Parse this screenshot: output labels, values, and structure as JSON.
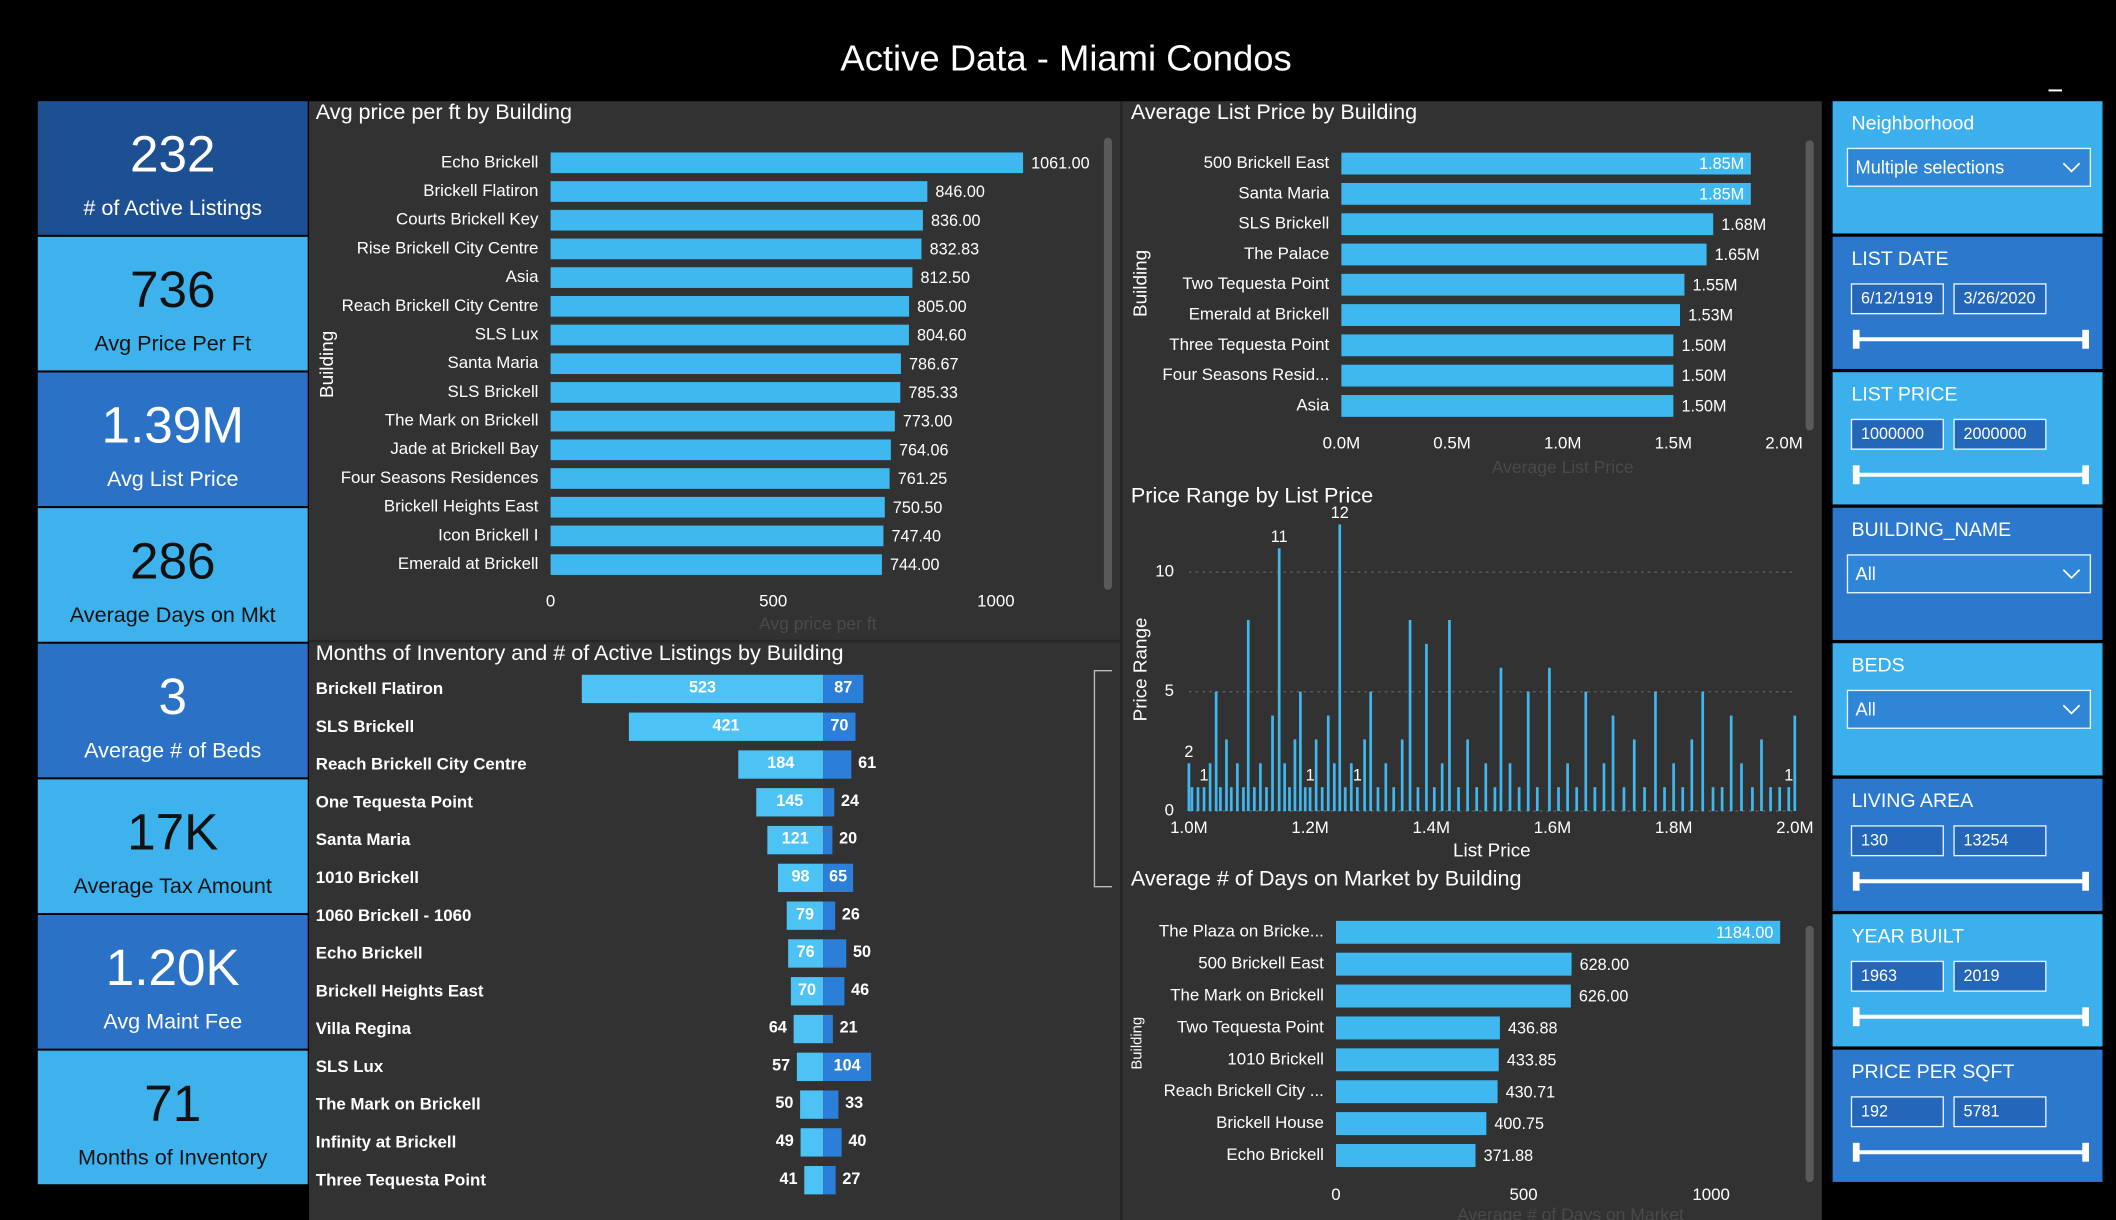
{
  "title": "Active Data - Miami Condos",
  "kpis": [
    {
      "value": "232",
      "label": "# of Active Listings"
    },
    {
      "value": "736",
      "label": "Avg Price Per Ft"
    },
    {
      "value": "1.39M",
      "label": "Avg List Price"
    },
    {
      "value": "286",
      "label": "Average Days on Mkt"
    },
    {
      "value": "3",
      "label": "Average # of Beds"
    },
    {
      "value": "17K",
      "label": "Average Tax Amount"
    },
    {
      "value": "1.20K",
      "label": "Avg Maint Fee"
    },
    {
      "value": "71",
      "label": "Months of Inventory"
    }
  ],
  "filters": [
    {
      "label": "Neighborhood",
      "selection": "Multiple selections"
    },
    {
      "label": "LIST DATE",
      "range": [
        "6/12/1919",
        "3/26/2020"
      ]
    },
    {
      "label": "LIST PRICE",
      "range": [
        "1000000",
        "2000000"
      ]
    },
    {
      "label": "BUILDING_NAME",
      "selection": "All"
    },
    {
      "label": "BEDS",
      "selection": "All"
    },
    {
      "label": "LIVING AREA",
      "range": [
        "130",
        "13254"
      ]
    },
    {
      "label": "YEAR BUILT",
      "range": [
        "1963",
        "2019"
      ]
    },
    {
      "label": "PRICE PER SQFT",
      "range": [
        "192",
        "5781"
      ]
    }
  ],
  "chart_data": [
    {
      "type": "bar",
      "orientation": "horizontal",
      "title": "Avg price per ft by Building",
      "x_label": "Avg price per ft",
      "y_label": "Building",
      "color": "#3fb8f0",
      "categories": [
        "Echo Brickell",
        "Brickell Flatiron",
        "Courts Brickell Key",
        "Rise Brickell City Centre",
        "Asia",
        "Reach Brickell City Centre",
        "SLS Lux",
        "Santa Maria",
        "SLS Brickell",
        "The Mark on Brickell",
        "Jade at Brickell Bay",
        "Four Seasons Residences",
        "Brickell Heights East",
        "Icon Brickell I",
        "Emerald at Brickell"
      ],
      "values": [
        1061,
        846,
        836,
        832.83,
        812.5,
        805,
        804.6,
        786.67,
        785.33,
        773,
        764.06,
        761.25,
        750.5,
        747.4,
        744
      ],
      "value_labels": [
        "1061.00",
        "846.00",
        "836.00",
        "832.83",
        "812.50",
        "805.00",
        "804.60",
        "786.67",
        "785.33",
        "773.00",
        "764.06",
        "761.25",
        "750.50",
        "747.40",
        "744.00"
      ],
      "xlim": [
        0,
        1200
      ],
      "xticks": [
        0,
        500,
        1000
      ]
    },
    {
      "type": "bar",
      "orientation": "horizontal",
      "title": "Average List Price by Building",
      "x_label": "Average List Price",
      "y_label": "Building",
      "color": "#3fb8f0",
      "categories": [
        "500 Brickell East",
        "Santa Maria",
        "SLS Brickell",
        "The Palace",
        "Two Tequesta Point",
        "Emerald at Brickell",
        "Three Tequesta Point",
        "Four Seasons Resid...",
        "Asia"
      ],
      "values": [
        1850000,
        1850000,
        1680000,
        1650000,
        1550000,
        1530000,
        1500000,
        1500000,
        1500000
      ],
      "value_labels": [
        "1.85M",
        "1.85M",
        "1.68M",
        "1.65M",
        "1.55M",
        "1.53M",
        "1.50M",
        "1.50M",
        "1.50M"
      ],
      "xlim": [
        0,
        2000000
      ],
      "xticks": [
        {
          "value": 0,
          "label": "0.0M"
        },
        {
          "value": 500000,
          "label": "0.5M"
        },
        {
          "value": 1000000,
          "label": "1.0M"
        },
        {
          "value": 1500000,
          "label": "1.5M"
        },
        {
          "value": 2000000,
          "label": "2.0M"
        }
      ]
    },
    {
      "type": "butterfly",
      "title": "Months of Inventory and # of Active Listings by Building",
      "categories": [
        "Brickell Flatiron",
        "SLS Brickell",
        "Reach Brickell City Centre",
        "One Tequesta Point",
        "Santa Maria",
        "1010 Brickell",
        "1060 Brickell - 1060",
        "Echo Brickell",
        "Brickell Heights East",
        "Villa Regina",
        "SLS Lux",
        "The Mark on Brickell",
        "Infinity at Brickell",
        "Three Tequesta Point"
      ],
      "series": [
        {
          "color": "#4cc2f5",
          "values": [
            523,
            421,
            184,
            145,
            121,
            98,
            79,
            76,
            70,
            64,
            57,
            50,
            49,
            41
          ]
        },
        {
          "color": "#2b7fd9",
          "values": [
            87,
            70,
            61,
            24,
            20,
            65,
            26,
            50,
            46,
            21,
            104,
            33,
            40,
            27
          ]
        }
      ]
    },
    {
      "type": "bar",
      "orientation": "vertical",
      "title": "Price Range by List Price",
      "x_label": "List Price",
      "y_label": "Price Range",
      "color": "#3fb8f0",
      "grid": true,
      "x": [
        1000000,
        1005000,
        1015000,
        1025000,
        1035000,
        1045000,
        1052000,
        1062000,
        1070000,
        1080000,
        1090000,
        1098000,
        1108000,
        1118000,
        1128000,
        1138000,
        1149000,
        1158000,
        1166000,
        1175000,
        1184000,
        1192000,
        1200000,
        1210000,
        1220000,
        1230000,
        1240000,
        1249000,
        1258000,
        1268000,
        1278000,
        1290000,
        1300000,
        1312000,
        1325000,
        1338000,
        1352000,
        1365000,
        1378000,
        1392000,
        1405000,
        1418000,
        1430000,
        1445000,
        1460000,
        1475000,
        1490000,
        1505000,
        1515000,
        1530000,
        1545000,
        1560000,
        1575000,
        1595000,
        1610000,
        1625000,
        1640000,
        1655000,
        1670000,
        1685000,
        1700000,
        1718000,
        1735000,
        1752000,
        1770000,
        1785000,
        1800000,
        1815000,
        1830000,
        1848000,
        1865000,
        1880000,
        1895000,
        1912000,
        1930000,
        1945000,
        1960000,
        1975000,
        1990000,
        2000000
      ],
      "values": [
        2,
        1,
        1,
        1,
        2,
        5,
        1,
        3,
        1,
        2,
        1,
        8,
        1,
        2,
        1,
        4,
        11,
        2,
        1,
        3,
        5,
        1,
        1,
        3,
        1,
        4,
        2,
        12,
        1,
        2,
        1,
        3,
        5,
        1,
        2,
        1,
        3,
        8,
        1,
        7,
        1,
        2,
        8,
        1,
        3,
        1,
        2,
        1,
        6,
        2,
        1,
        5,
        1,
        6,
        1,
        2,
        1,
        5,
        1,
        2,
        4,
        1,
        3,
        1,
        5,
        1,
        2,
        1,
        3,
        5,
        1,
        1,
        4,
        2,
        1,
        3,
        1,
        1,
        1,
        4
      ],
      "value_labels": [
        "2",
        null,
        null,
        "1",
        null,
        null,
        null,
        null,
        null,
        null,
        null,
        null,
        null,
        null,
        null,
        null,
        "11",
        null,
        null,
        null,
        null,
        null,
        "1",
        null,
        null,
        null,
        null,
        "12",
        null,
        null,
        "1",
        null,
        null,
        null,
        null,
        null,
        null,
        null,
        null,
        null,
        null,
        null,
        null,
        null,
        null,
        null,
        null,
        null,
        null,
        null,
        null,
        null,
        null,
        null,
        null,
        null,
        null,
        null,
        null,
        null,
        null,
        null,
        null,
        null,
        null,
        null,
        null,
        null,
        null,
        null,
        null,
        null,
        null,
        null,
        null,
        null,
        null,
        null,
        "1",
        null
      ],
      "xlim": [
        1000000,
        2000000
      ],
      "xticks": [
        {
          "value": 1000000,
          "label": "1.0M"
        },
        {
          "value": 1200000,
          "label": "1.2M"
        },
        {
          "value": 1400000,
          "label": "1.4M"
        },
        {
          "value": 1600000,
          "label": "1.6M"
        },
        {
          "value": 1800000,
          "label": "1.8M"
        },
        {
          "value": 2000000,
          "label": "2.0M"
        }
      ],
      "ylim": [
        0,
        12
      ],
      "yticks": [
        0,
        5,
        10
      ]
    },
    {
      "type": "bar",
      "orientation": "horizontal",
      "title": "Average # of Days on Market by Building",
      "x_label": "Average # of Days on Market",
      "y_label": "Building",
      "color": "#3fb8f0",
      "categories": [
        "The Plaza on Bricke...",
        "500 Brickell East",
        "The Mark on Brickell",
        "Two Tequesta Point",
        "1010 Brickell",
        "Reach Brickell City ...",
        "Brickell House",
        "Echo Brickell"
      ],
      "values": [
        1184,
        628,
        626,
        436.88,
        433.85,
        430.71,
        400.75,
        371.88
      ],
      "value_labels": [
        "1184.00",
        "628.00",
        "626.00",
        "436.88",
        "433.85",
        "430.71",
        "400.75",
        "371.88"
      ],
      "xlim": [
        0,
        1250
      ],
      "xticks": [
        0,
        500,
        1000
      ]
    }
  ]
}
